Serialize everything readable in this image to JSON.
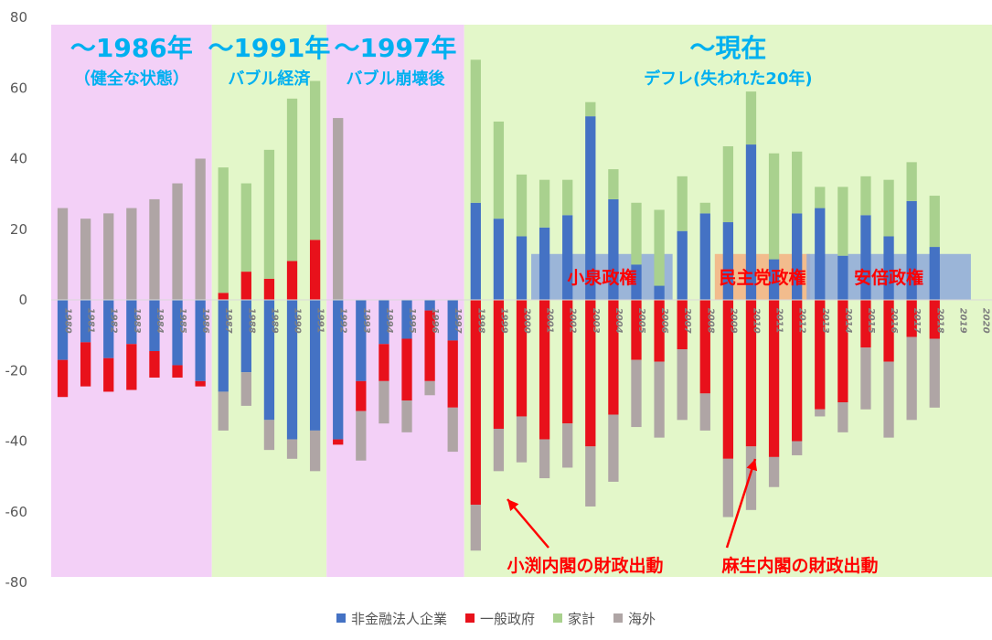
{
  "chart_data": {
    "type": "bar",
    "stacked": true,
    "ylim": [
      -80,
      80
    ],
    "yticks": [
      80,
      60,
      40,
      20,
      0,
      -20,
      -40,
      -60,
      -80
    ],
    "grid": false,
    "legend_position": "bottom",
    "categories": [
      "1980",
      "1981",
      "1982",
      "1983",
      "1984",
      "1985",
      "1986",
      "1987",
      "1988",
      "1989",
      "1990",
      "1991",
      "1992",
      "1993",
      "1994",
      "1995",
      "1996",
      "1997",
      "1998",
      "1999",
      "2000",
      "2001",
      "2002",
      "2003",
      "2004",
      "2005",
      "2006",
      "2007",
      "2008",
      "2009",
      "2010",
      "2011",
      "2012",
      "2013",
      "2014",
      "2015",
      "2016",
      "2017",
      "2018",
      "2019",
      "2020"
    ],
    "series": [
      {
        "name": "非金融法人企業",
        "color": "#4472C4",
        "values": [
          -17,
          -12,
          -16.5,
          -12.5,
          -14.5,
          -18.5,
          -23,
          -26,
          -20.5,
          -34,
          -39.5,
          -37,
          -39.5,
          -23,
          -12.5,
          -11,
          -3,
          -11.5,
          27.5,
          23,
          18,
          20.5,
          24,
          52,
          28.5,
          10,
          4,
          19.5,
          24.5,
          22,
          44,
          11.5,
          24.5,
          26,
          12.5,
          24,
          18,
          28,
          15,
          0,
          0
        ]
      },
      {
        "name": "一般政府",
        "color": "#E8111B",
        "values": [
          -10.5,
          -12.5,
          -9.5,
          -13,
          -7.5,
          -3.5,
          -1.5,
          2,
          8,
          6,
          11,
          17,
          -1.5,
          -8.5,
          -10.5,
          -17.5,
          -20,
          -19,
          -58,
          -36.5,
          -33,
          -39.5,
          -35,
          -41.5,
          -32.5,
          -17,
          -17.5,
          -14,
          -26.5,
          -45,
          -41.5,
          -44.5,
          -40,
          -31,
          -29,
          -13.5,
          -17.5,
          -10.5,
          -11,
          0,
          0
        ]
      },
      {
        "name": "家計",
        "color": "#A9D18E",
        "values": [
          0,
          0,
          0,
          0,
          0,
          0,
          0,
          35.5,
          25,
          36.5,
          46,
          45,
          0,
          0,
          0,
          0,
          0,
          0,
          40.5,
          27.5,
          17.5,
          13.5,
          10,
          4,
          8.5,
          17.5,
          21.5,
          15.5,
          3,
          21.5,
          15,
          30,
          17.5,
          6,
          19.5,
          11,
          16,
          11,
          14.5,
          0,
          0
        ]
      },
      {
        "name": "海外",
        "color": "#AFA5A5",
        "values": [
          26,
          23,
          24.5,
          26,
          28.5,
          33,
          40,
          -11,
          -9.5,
          -8.5,
          -5.5,
          -11.5,
          51.5,
          -14,
          -12,
          -9,
          -4,
          -12.5,
          -13,
          -12,
          -13,
          -11,
          -12.5,
          -17,
          -19,
          -19,
          -21.5,
          -20,
          -10.5,
          -16.5,
          -18,
          -8.5,
          -4,
          -2,
          -8.5,
          -17.5,
          -21.5,
          -23.5,
          -19.5,
          0,
          0
        ]
      }
    ],
    "negative_adjustments": {
      "1980": {
        "海外": -0.5
      },
      "1981": {
        "海外": -1.5
      },
      "1982": {
        "海外": -2
      },
      "1983": {
        "海外": -5
      },
      "1984": {
        "海外": -8.5
      },
      "1985": {
        "海外": -12
      },
      "1986": {
        "海外": -15
      },
      "1992": {
        "海外": -14.5
      },
      "1993": {
        "海外": -14
      },
      "1994": {
        "海外": -12
      },
      "1995": {
        "海外": -9
      },
      "1996": {
        "海外": -12.5
      },
      "1998": {
        "海外": -12.5
      }
    },
    "positive_adjustments": {
      "1980": {
        "海外_top": 27.5
      }
    },
    "regions": [
      {
        "label": "〜1986年",
        "sublabel": "（健全な状態）",
        "from": "1980",
        "to": "1986",
        "color": "#F3D0F7"
      },
      {
        "label": "〜1991年",
        "sublabel": "バブル経済",
        "from": "1987",
        "to": "1991",
        "color": "#E3F7C9"
      },
      {
        "label": "〜1997年",
        "sublabel": "バブル崩壊後",
        "from": "1992",
        "to": "1997",
        "color": "#F3D0F7"
      },
      {
        "label": "〜現在",
        "sublabel": "デフレ(失われた20年)",
        "from": "1998",
        "to": "2020",
        "color": "#E3F7C9"
      }
    ],
    "government_bands": [
      {
        "label": "小泉政権",
        "from": "2001",
        "to": "2006",
        "color": "#8EA9DB"
      },
      {
        "label": "民主党政権",
        "from": "2009",
        "to": "2012",
        "color": "#F4B183"
      },
      {
        "label": "安倍政権",
        "from": "2013",
        "to": "2019",
        "color": "#8EA9DB"
      }
    ],
    "annotations": [
      {
        "text": "小渕内閣の財政出動",
        "target": "1998",
        "value": -58,
        "color": "#FF0000"
      },
      {
        "text": "麻生内閣の財政出動",
        "target": "2009",
        "value": -45,
        "color": "#FF0000"
      }
    ]
  }
}
